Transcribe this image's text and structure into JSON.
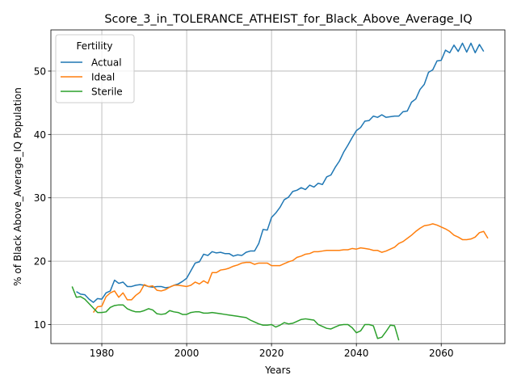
{
  "chart_data": {
    "type": "line",
    "title": "Score_3_in_TOLERANCE_ATHEIST_for_Black_Above_Average_IQ",
    "xlabel": "Years",
    "ylabel": "% of Black Above_Average_IQ Population",
    "xlim": [
      1968,
      2075
    ],
    "ylim": [
      7,
      56.5
    ],
    "xticks": [
      1980,
      2000,
      2020,
      2040,
      2060
    ],
    "yticks": [
      10,
      20,
      30,
      40,
      50
    ],
    "grid": true,
    "legend": {
      "title": "Fertility",
      "position": "top-left"
    },
    "series": [
      {
        "name": "Actual",
        "color": "#1f77b4",
        "points": [
          [
            1974,
            15.2
          ],
          [
            1975,
            14.8
          ],
          [
            1976,
            14.7
          ],
          [
            1977,
            14.0
          ],
          [
            1978,
            13.5
          ],
          [
            1979,
            14.1
          ],
          [
            1980,
            14.0
          ],
          [
            1981,
            15.0
          ],
          [
            1982,
            15.3
          ],
          [
            1983,
            17.0
          ],
          [
            1984,
            16.5
          ],
          [
            1985,
            16.7
          ],
          [
            1986,
            16.0
          ],
          [
            1987,
            16.0
          ],
          [
            1988,
            16.2
          ],
          [
            1989,
            16.3
          ],
          [
            1990,
            16.2
          ],
          [
            1991,
            16.0
          ],
          [
            1992,
            15.9
          ],
          [
            1993,
            16.0
          ],
          [
            1994,
            16.0
          ],
          [
            1995,
            15.8
          ],
          [
            1996,
            15.9
          ],
          [
            1997,
            16.2
          ],
          [
            1998,
            16.4
          ],
          [
            1999,
            16.8
          ],
          [
            2000,
            17.3
          ],
          [
            2001,
            18.5
          ],
          [
            2002,
            19.7
          ],
          [
            2003,
            19.9
          ],
          [
            2004,
            21.1
          ],
          [
            2005,
            20.9
          ],
          [
            2006,
            21.5
          ],
          [
            2007,
            21.3
          ],
          [
            2008,
            21.4
          ],
          [
            2009,
            21.2
          ],
          [
            2010,
            21.2
          ],
          [
            2011,
            20.8
          ],
          [
            2012,
            21.0
          ],
          [
            2013,
            20.9
          ],
          [
            2014,
            21.4
          ],
          [
            2015,
            21.6
          ],
          [
            2016,
            21.6
          ],
          [
            2017,
            22.8
          ],
          [
            2018,
            25.0
          ],
          [
            2019,
            24.9
          ],
          [
            2020,
            26.9
          ],
          [
            2021,
            27.6
          ],
          [
            2022,
            28.5
          ],
          [
            2023,
            29.7
          ],
          [
            2024,
            30.1
          ],
          [
            2025,
            31.0
          ],
          [
            2026,
            31.2
          ],
          [
            2027,
            31.6
          ],
          [
            2028,
            31.3
          ],
          [
            2029,
            32.0
          ],
          [
            2030,
            31.7
          ],
          [
            2031,
            32.3
          ],
          [
            2032,
            32.1
          ],
          [
            2033,
            33.3
          ],
          [
            2034,
            33.6
          ],
          [
            2035,
            34.8
          ],
          [
            2036,
            35.8
          ],
          [
            2037,
            37.2
          ],
          [
            2038,
            38.3
          ],
          [
            2039,
            39.5
          ],
          [
            2040,
            40.6
          ],
          [
            2041,
            41.1
          ],
          [
            2042,
            42.1
          ],
          [
            2043,
            42.2
          ],
          [
            2044,
            42.9
          ],
          [
            2045,
            42.7
          ],
          [
            2046,
            43.1
          ],
          [
            2047,
            42.7
          ],
          [
            2048,
            42.8
          ],
          [
            2049,
            42.9
          ],
          [
            2050,
            42.9
          ],
          [
            2051,
            43.6
          ],
          [
            2052,
            43.7
          ],
          [
            2053,
            45.1
          ],
          [
            2054,
            45.6
          ],
          [
            2055,
            47.1
          ],
          [
            2056,
            47.9
          ],
          [
            2057,
            49.8
          ],
          [
            2058,
            50.2
          ],
          [
            2059,
            51.6
          ],
          [
            2060,
            51.7
          ],
          [
            2061,
            53.3
          ],
          [
            2062,
            52.9
          ],
          [
            2063,
            54.1
          ],
          [
            2064,
            53.1
          ],
          [
            2065,
            54.4
          ],
          [
            2066,
            53.0
          ],
          [
            2067,
            54.4
          ],
          [
            2068,
            52.9
          ],
          [
            2069,
            54.2
          ],
          [
            2070,
            53.1
          ]
        ]
      },
      {
        "name": "Ideal",
        "color": "#ff7f0e",
        "points": [
          [
            1978,
            11.9
          ],
          [
            1979,
            12.8
          ],
          [
            1980,
            12.9
          ],
          [
            1981,
            14.4
          ],
          [
            1982,
            15.0
          ],
          [
            1983,
            15.3
          ],
          [
            1984,
            14.3
          ],
          [
            1985,
            15.0
          ],
          [
            1986,
            13.9
          ],
          [
            1987,
            13.9
          ],
          [
            1988,
            14.6
          ],
          [
            1989,
            15.1
          ],
          [
            1990,
            16.3
          ],
          [
            1991,
            16.0
          ],
          [
            1992,
            16.1
          ],
          [
            1993,
            15.4
          ],
          [
            1994,
            15.3
          ],
          [
            1995,
            15.5
          ],
          [
            1996,
            15.9
          ],
          [
            1997,
            16.2
          ],
          [
            1998,
            16.2
          ],
          [
            1999,
            16.1
          ],
          [
            2000,
            16.0
          ],
          [
            2001,
            16.2
          ],
          [
            2002,
            16.7
          ],
          [
            2003,
            16.4
          ],
          [
            2004,
            16.9
          ],
          [
            2005,
            16.5
          ],
          [
            2006,
            18.2
          ],
          [
            2007,
            18.2
          ],
          [
            2008,
            18.6
          ],
          [
            2009,
            18.7
          ],
          [
            2010,
            18.9
          ],
          [
            2011,
            19.2
          ],
          [
            2012,
            19.4
          ],
          [
            2013,
            19.7
          ],
          [
            2014,
            19.8
          ],
          [
            2015,
            19.8
          ],
          [
            2016,
            19.5
          ],
          [
            2017,
            19.7
          ],
          [
            2018,
            19.7
          ],
          [
            2019,
            19.7
          ],
          [
            2020,
            19.3
          ],
          [
            2021,
            19.3
          ],
          [
            2022,
            19.3
          ],
          [
            2023,
            19.6
          ],
          [
            2024,
            19.9
          ],
          [
            2025,
            20.1
          ],
          [
            2026,
            20.6
          ],
          [
            2027,
            20.8
          ],
          [
            2028,
            21.1
          ],
          [
            2029,
            21.2
          ],
          [
            2030,
            21.5
          ],
          [
            2031,
            21.5
          ],
          [
            2032,
            21.6
          ],
          [
            2033,
            21.7
          ],
          [
            2034,
            21.7
          ],
          [
            2035,
            21.7
          ],
          [
            2036,
            21.7
          ],
          [
            2037,
            21.8
          ],
          [
            2038,
            21.8
          ],
          [
            2039,
            22.0
          ],
          [
            2040,
            21.9
          ],
          [
            2041,
            22.1
          ],
          [
            2042,
            22.0
          ],
          [
            2043,
            21.9
          ],
          [
            2044,
            21.7
          ],
          [
            2045,
            21.7
          ],
          [
            2046,
            21.4
          ],
          [
            2047,
            21.6
          ],
          [
            2048,
            21.9
          ],
          [
            2049,
            22.2
          ],
          [
            2050,
            22.8
          ],
          [
            2051,
            23.1
          ],
          [
            2052,
            23.6
          ],
          [
            2053,
            24.1
          ],
          [
            2054,
            24.7
          ],
          [
            2055,
            25.2
          ],
          [
            2056,
            25.6
          ],
          [
            2057,
            25.7
          ],
          [
            2058,
            25.9
          ],
          [
            2059,
            25.7
          ],
          [
            2060,
            25.4
          ],
          [
            2061,
            25.1
          ],
          [
            2062,
            24.7
          ],
          [
            2063,
            24.1
          ],
          [
            2064,
            23.8
          ],
          [
            2065,
            23.4
          ],
          [
            2066,
            23.4
          ],
          [
            2067,
            23.5
          ],
          [
            2068,
            23.8
          ],
          [
            2069,
            24.5
          ],
          [
            2070,
            24.7
          ],
          [
            2071,
            23.6
          ]
        ]
      },
      {
        "name": "Sterile",
        "color": "#2ca02c",
        "points": [
          [
            1973,
            16.0
          ],
          [
            1974,
            14.3
          ],
          [
            1975,
            14.4
          ],
          [
            1976,
            14.0
          ],
          [
            1977,
            13.3
          ],
          [
            1978,
            12.6
          ],
          [
            1979,
            11.9
          ],
          [
            1980,
            11.9
          ],
          [
            1981,
            12.0
          ],
          [
            1982,
            12.7
          ],
          [
            1983,
            13.0
          ],
          [
            1984,
            13.1
          ],
          [
            1985,
            13.1
          ],
          [
            1986,
            12.5
          ],
          [
            1987,
            12.2
          ],
          [
            1988,
            12.0
          ],
          [
            1989,
            12.0
          ],
          [
            1990,
            12.2
          ],
          [
            1991,
            12.5
          ],
          [
            1992,
            12.3
          ],
          [
            1993,
            11.7
          ],
          [
            1994,
            11.6
          ],
          [
            1995,
            11.7
          ],
          [
            1996,
            12.2
          ],
          [
            1997,
            12.0
          ],
          [
            1998,
            11.9
          ],
          [
            1999,
            11.6
          ],
          [
            2000,
            11.6
          ],
          [
            2001,
            11.9
          ],
          [
            2002,
            12.0
          ],
          [
            2003,
            12.0
          ],
          [
            2004,
            11.8
          ],
          [
            2005,
            11.8
          ],
          [
            2006,
            11.9
          ],
          [
            2007,
            11.8
          ],
          [
            2008,
            11.7
          ],
          [
            2009,
            11.6
          ],
          [
            2010,
            11.5
          ],
          [
            2011,
            11.4
          ],
          [
            2012,
            11.3
          ],
          [
            2013,
            11.2
          ],
          [
            2014,
            11.1
          ],
          [
            2015,
            10.7
          ],
          [
            2016,
            10.4
          ],
          [
            2017,
            10.1
          ],
          [
            2018,
            9.9
          ],
          [
            2019,
            9.9
          ],
          [
            2020,
            10.0
          ],
          [
            2021,
            9.6
          ],
          [
            2022,
            9.9
          ],
          [
            2023,
            10.3
          ],
          [
            2024,
            10.1
          ],
          [
            2025,
            10.2
          ],
          [
            2026,
            10.5
          ],
          [
            2027,
            10.8
          ],
          [
            2028,
            10.9
          ],
          [
            2029,
            10.8
          ],
          [
            2030,
            10.7
          ],
          [
            2031,
            10.0
          ],
          [
            2032,
            9.7
          ],
          [
            2033,
            9.4
          ],
          [
            2034,
            9.3
          ],
          [
            2035,
            9.6
          ],
          [
            2036,
            9.9
          ],
          [
            2037,
            10.0
          ],
          [
            2038,
            10.0
          ],
          [
            2039,
            9.5
          ],
          [
            2040,
            8.7
          ],
          [
            2041,
            9.0
          ],
          [
            2042,
            10.0
          ],
          [
            2043,
            10.0
          ],
          [
            2044,
            9.8
          ],
          [
            2045,
            7.8
          ],
          [
            2046,
            8.0
          ],
          [
            2047,
            8.9
          ],
          [
            2048,
            9.9
          ],
          [
            2049,
            9.8
          ],
          [
            2050,
            7.5
          ]
        ]
      }
    ]
  }
}
